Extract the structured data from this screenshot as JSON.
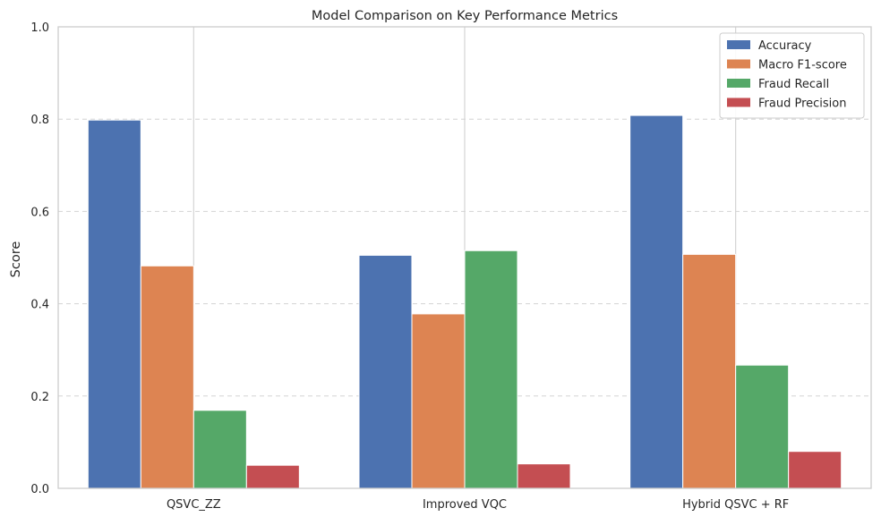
{
  "chart_data": {
    "type": "bar",
    "title": "Model Comparison on Key Performance Metrics",
    "xlabel": "",
    "ylabel": "Score",
    "ylim": [
      0,
      1.0
    ],
    "yticks": [
      "0.0",
      "0.2",
      "0.4",
      "0.6",
      "0.8",
      "1.0"
    ],
    "grid": "y-dashed",
    "legend_position": "top-right",
    "categories": [
      "QSVC_ZZ",
      "Improved VQC",
      "Hybrid QSVC + RF"
    ],
    "series": [
      {
        "name": "Accuracy",
        "color": "#4c72b0",
        "values": [
          0.798,
          0.505,
          0.808
        ]
      },
      {
        "name": "Macro F1-score",
        "color": "#dd8452",
        "values": [
          0.482,
          0.378,
          0.507
        ]
      },
      {
        "name": "Fraud Recall",
        "color": "#55a868",
        "values": [
          0.169,
          0.515,
          0.267
        ]
      },
      {
        "name": "Fraud Precision",
        "color": "#c44e52",
        "values": [
          0.05,
          0.053,
          0.08
        ]
      }
    ]
  }
}
